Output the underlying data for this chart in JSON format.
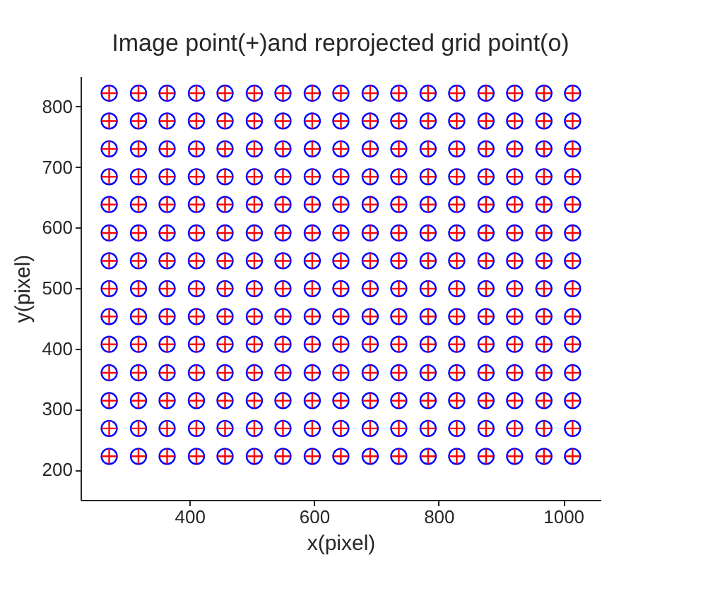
{
  "chart_data": {
    "type": "scatter",
    "title": "Image point(+)and reprojected grid point(o)",
    "xlabel": "x(pixel)",
    "ylabel": "y(pixel)",
    "x": [
      271,
      318,
      364,
      411,
      457,
      504,
      550,
      597,
      643,
      690,
      736,
      783,
      829,
      876,
      922,
      969,
      1015,
      271,
      318,
      364,
      411,
      457,
      504,
      550,
      597,
      643,
      690,
      736,
      783,
      829,
      876,
      922,
      969,
      1015,
      271,
      318,
      364,
      411,
      457,
      504,
      550,
      597,
      643,
      690,
      736,
      783,
      829,
      876,
      922,
      969,
      1015,
      271,
      318,
      364,
      411,
      457,
      504,
      550,
      597,
      643,
      690,
      736,
      783,
      829,
      876,
      922,
      969,
      1015,
      271,
      318,
      364,
      411,
      457,
      504,
      550,
      597,
      643,
      690,
      736,
      783,
      829,
      876,
      922,
      969,
      1015,
      271,
      318,
      364,
      411,
      457,
      504,
      550,
      597,
      643,
      690,
      736,
      783,
      829,
      876,
      922,
      969,
      1015,
      271,
      318,
      364,
      411,
      457,
      504,
      550,
      597,
      643,
      690,
      736,
      783,
      829,
      876,
      922,
      969,
      1015,
      271,
      318,
      364,
      411,
      457,
      504,
      550,
      597,
      643,
      690,
      736,
      783,
      829,
      876,
      922,
      969,
      1015,
      271,
      318,
      364,
      411,
      457,
      504,
      550,
      597,
      643,
      690,
      736,
      783,
      829,
      876,
      922,
      969,
      1015,
      271,
      318,
      364,
      411,
      457,
      504,
      550,
      597,
      643,
      690,
      736,
      783,
      829,
      876,
      922,
      969,
      1015,
      271,
      318,
      364,
      411,
      457,
      504,
      550,
      597,
      643,
      690,
      736,
      783,
      829,
      876,
      922,
      969,
      1015,
      271,
      318,
      364,
      411,
      457,
      504,
      550,
      597,
      643,
      690,
      736,
      783,
      829,
      876,
      922,
      969,
      1015,
      271,
      318,
      364,
      411,
      457,
      504,
      550,
      597,
      643,
      690,
      736,
      783,
      829,
      876,
      922,
      969,
      1015,
      271,
      318,
      364,
      411,
      457,
      504,
      550,
      597,
      643,
      690,
      736,
      783,
      829,
      876,
      922,
      969,
      1015
    ],
    "series": [
      {
        "color": "#0000ff",
        "marker": "circle",
        "values": [
          822,
          822,
          822,
          822,
          822,
          822,
          822,
          822,
          822,
          822,
          822,
          822,
          822,
          822,
          822,
          822,
          822,
          776,
          776,
          776,
          776,
          776,
          776,
          776,
          776,
          776,
          776,
          776,
          776,
          776,
          776,
          776,
          776,
          776,
          730,
          730,
          730,
          730,
          730,
          730,
          730,
          730,
          730,
          730,
          730,
          730,
          730,
          730,
          730,
          730,
          730,
          684,
          684,
          684,
          684,
          684,
          684,
          684,
          684,
          684,
          684,
          684,
          684,
          684,
          684,
          684,
          684,
          684,
          638,
          638,
          638,
          638,
          638,
          638,
          638,
          638,
          638,
          638,
          638,
          638,
          638,
          638,
          638,
          638,
          638,
          591,
          591,
          591,
          591,
          591,
          591,
          591,
          591,
          591,
          591,
          591,
          591,
          591,
          591,
          591,
          591,
          591,
          545,
          545,
          545,
          545,
          545,
          545,
          545,
          545,
          545,
          545,
          545,
          545,
          545,
          545,
          545,
          545,
          545,
          499,
          499,
          499,
          499,
          499,
          499,
          499,
          499,
          499,
          499,
          499,
          499,
          499,
          499,
          499,
          499,
          499,
          453,
          453,
          453,
          453,
          453,
          453,
          453,
          453,
          453,
          453,
          453,
          453,
          453,
          453,
          453,
          453,
          453,
          407,
          407,
          407,
          407,
          407,
          407,
          407,
          407,
          407,
          407,
          407,
          407,
          407,
          407,
          407,
          407,
          407,
          360,
          360,
          360,
          360,
          360,
          360,
          360,
          360,
          360,
          360,
          360,
          360,
          360,
          360,
          360,
          360,
          360,
          314,
          314,
          314,
          314,
          314,
          314,
          314,
          314,
          314,
          314,
          314,
          314,
          314,
          314,
          314,
          314,
          314,
          268,
          268,
          268,
          268,
          268,
          268,
          268,
          268,
          268,
          268,
          268,
          268,
          268,
          268,
          268,
          268,
          268,
          222,
          222,
          222,
          222,
          222,
          222,
          222,
          222,
          222,
          222,
          222,
          222,
          222,
          222,
          222,
          222,
          222
        ]
      },
      {
        "color": "#ff0000",
        "marker": "cross",
        "values": [
          822,
          822,
          822,
          822,
          822,
          822,
          822,
          822,
          822,
          822,
          822,
          822,
          822,
          822,
          822,
          822,
          822,
          776,
          776,
          776,
          776,
          776,
          776,
          776,
          776,
          776,
          776,
          776,
          776,
          776,
          776,
          776,
          776,
          776,
          730,
          730,
          730,
          730,
          730,
          730,
          730,
          730,
          730,
          730,
          730,
          730,
          730,
          730,
          730,
          730,
          730,
          684,
          684,
          684,
          684,
          684,
          684,
          684,
          684,
          684,
          684,
          684,
          684,
          684,
          684,
          684,
          684,
          684,
          638,
          638,
          638,
          638,
          638,
          638,
          638,
          638,
          638,
          638,
          638,
          638,
          638,
          638,
          638,
          638,
          638,
          591,
          591,
          591,
          591,
          591,
          591,
          591,
          591,
          591,
          591,
          591,
          591,
          591,
          591,
          591,
          591,
          591,
          545,
          545,
          545,
          545,
          545,
          545,
          545,
          545,
          545,
          545,
          545,
          545,
          545,
          545,
          545,
          545,
          545,
          499,
          499,
          499,
          499,
          499,
          499,
          499,
          499,
          499,
          499,
          499,
          499,
          499,
          499,
          499,
          499,
          499,
          453,
          453,
          453,
          453,
          453,
          453,
          453,
          453,
          453,
          453,
          453,
          453,
          453,
          453,
          453,
          453,
          453,
          407,
          407,
          407,
          407,
          407,
          407,
          407,
          407,
          407,
          407,
          407,
          407,
          407,
          407,
          407,
          407,
          407,
          360,
          360,
          360,
          360,
          360,
          360,
          360,
          360,
          360,
          360,
          360,
          360,
          360,
          360,
          360,
          360,
          360,
          314,
          314,
          314,
          314,
          314,
          314,
          314,
          314,
          314,
          314,
          314,
          314,
          314,
          314,
          314,
          314,
          314,
          268,
          268,
          268,
          268,
          268,
          268,
          268,
          268,
          268,
          268,
          268,
          268,
          268,
          268,
          268,
          268,
          268,
          222,
          222,
          222,
          222,
          222,
          222,
          222,
          222,
          222,
          222,
          222,
          222,
          222,
          222,
          222,
          222,
          222
        ]
      }
    ],
    "xlim": [
      225,
      1060
    ],
    "ylim": [
      150,
      850
    ],
    "xticks": [
      400,
      600,
      800,
      1000
    ],
    "yticks": [
      200,
      300,
      400,
      500,
      600,
      700,
      800
    ],
    "grid": false
  }
}
